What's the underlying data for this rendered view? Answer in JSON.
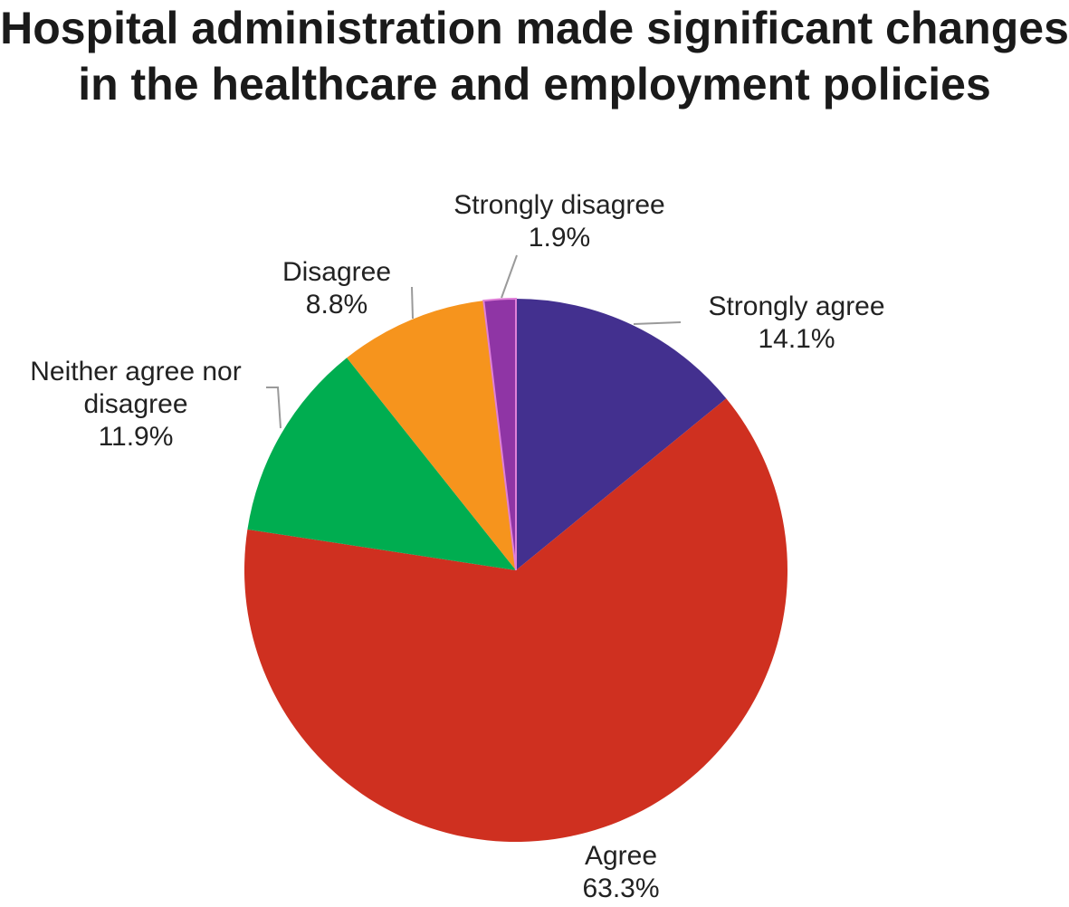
{
  "chart_data": {
    "type": "pie",
    "title": "Hospital administration made significant changes in the healthcare and employment policies",
    "slices": [
      {
        "label": "Strongly agree",
        "value": 14.1,
        "value_label": "14.1%",
        "color": "#43308f"
      },
      {
        "label": "Agree",
        "value": 63.3,
        "value_label": "63.3%",
        "color": "#cf3020"
      },
      {
        "label": "Neither agree nor disagree",
        "value": 11.9,
        "value_label": "11.9%",
        "color": "#00ad50"
      },
      {
        "label": "Disagree",
        "value": 8.8,
        "value_label": "8.8%",
        "color": "#f6941d"
      },
      {
        "label": "Strongly disagree",
        "value": 1.9,
        "value_label": "1.9%",
        "color": "#8f35a5",
        "border_color": "#e080d8"
      }
    ],
    "start_angle_deg": 0,
    "direction": "clockwise",
    "legend": "none"
  }
}
